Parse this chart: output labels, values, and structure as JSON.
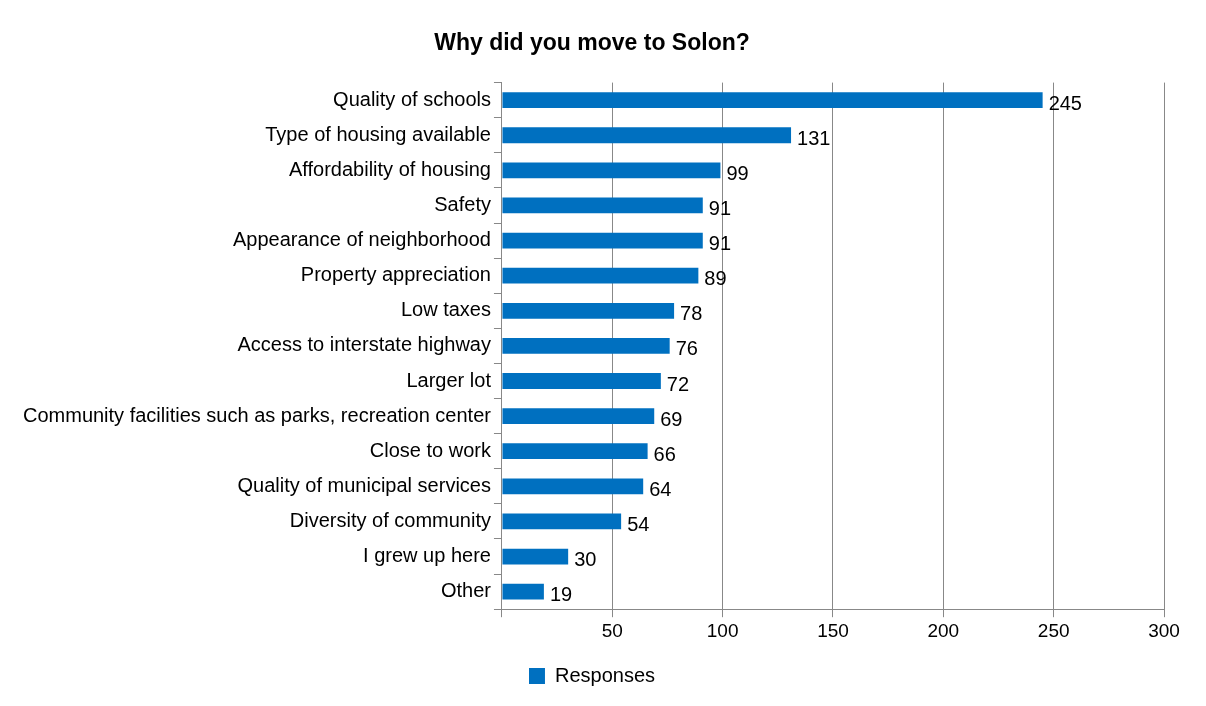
{
  "chart_data": {
    "type": "bar",
    "orientation": "horizontal",
    "title": "Why did you move to Solon?",
    "categories": [
      "Quality of schools",
      "Type of housing available",
      "Affordability of housing",
      "Safety",
      "Appearance of neighborhood",
      "Property appreciation",
      "Low taxes",
      "Access to interstate highway",
      "Larger lot",
      "Community facilities such as parks, recreation center",
      "Close to work",
      "Quality of municipal services",
      "Diversity of community",
      "I grew up here",
      "Other"
    ],
    "series": [
      {
        "name": "Responses",
        "color": "#0070c0",
        "values": [
          245,
          131,
          99,
          91,
          91,
          89,
          78,
          76,
          72,
          69,
          66,
          64,
          54,
          30,
          19
        ]
      }
    ],
    "xlim": [
      0,
      300
    ],
    "xticks": [
      {
        "value": 0,
        "label": null
      },
      50,
      100,
      150,
      200,
      250,
      300
    ],
    "grid": "x",
    "legend": "bottom",
    "data_labels": true
  }
}
